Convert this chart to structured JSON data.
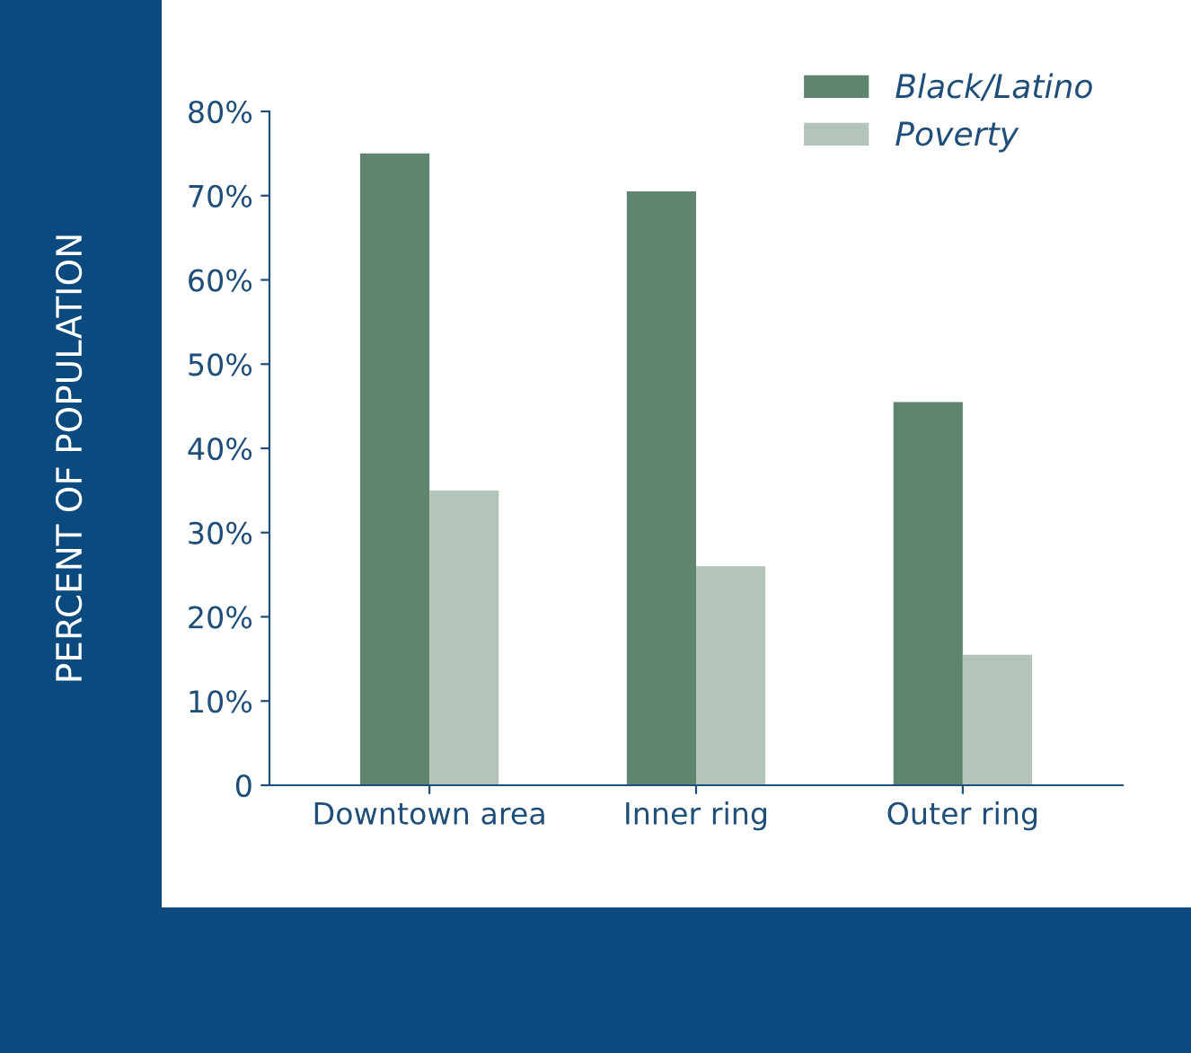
{
  "chart_data": {
    "type": "bar",
    "ylabel": "PERCENT OF POPULATION",
    "categories": [
      "Downtown area",
      "Inner ring",
      "Outer ring"
    ],
    "series": [
      {
        "name": "Black/Latino",
        "color": "#5f8570",
        "values": [
          75,
          70.5,
          45.5
        ]
      },
      {
        "name": "Poverty",
        "color": "#b3c4b8",
        "values": [
          35,
          26,
          15.5
        ]
      }
    ],
    "ylim": [
      0,
      80
    ],
    "yticks": [
      {
        "value": 0,
        "label": "0"
      },
      {
        "value": 10,
        "label": "10%"
      },
      {
        "value": 20,
        "label": "20%"
      },
      {
        "value": 30,
        "label": "30%"
      },
      {
        "value": 40,
        "label": "40%"
      },
      {
        "value": 50,
        "label": "50%"
      },
      {
        "value": 60,
        "label": "60%"
      },
      {
        "value": 70,
        "label": "70%"
      },
      {
        "value": 80,
        "label": "80%"
      }
    ],
    "grid": false,
    "legend": "top right"
  }
}
